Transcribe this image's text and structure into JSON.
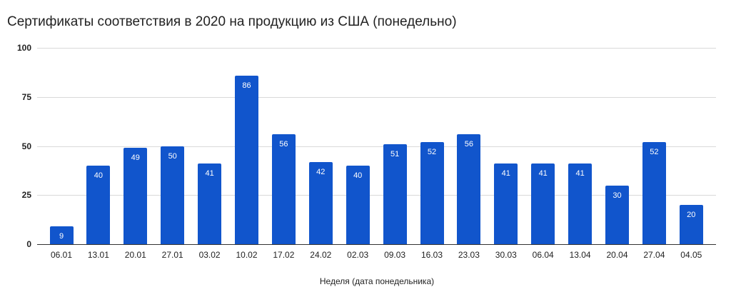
{
  "chart_data": {
    "type": "bar",
    "title": "Сертификаты соответствия в 2020 на продукцию из США (понедельно)",
    "xlabel": "Неделя (дата понедельника)",
    "ylabel": "",
    "ylim": [
      0,
      100
    ],
    "yticks": [
      0,
      25,
      50,
      75,
      100
    ],
    "grid": true,
    "legend": "none",
    "color": "#1155cc",
    "categories": [
      "06.01",
      "13.01",
      "20.01",
      "27.01",
      "03.02",
      "10.02",
      "17.02",
      "24.02",
      "02.03",
      "09.03",
      "16.03",
      "23.03",
      "30.03",
      "06.04",
      "13.04",
      "20.04",
      "27.04",
      "04.05"
    ],
    "values": [
      9,
      40,
      49,
      50,
      41,
      86,
      56,
      42,
      40,
      51,
      52,
      56,
      41,
      41,
      41,
      30,
      52,
      20
    ]
  }
}
